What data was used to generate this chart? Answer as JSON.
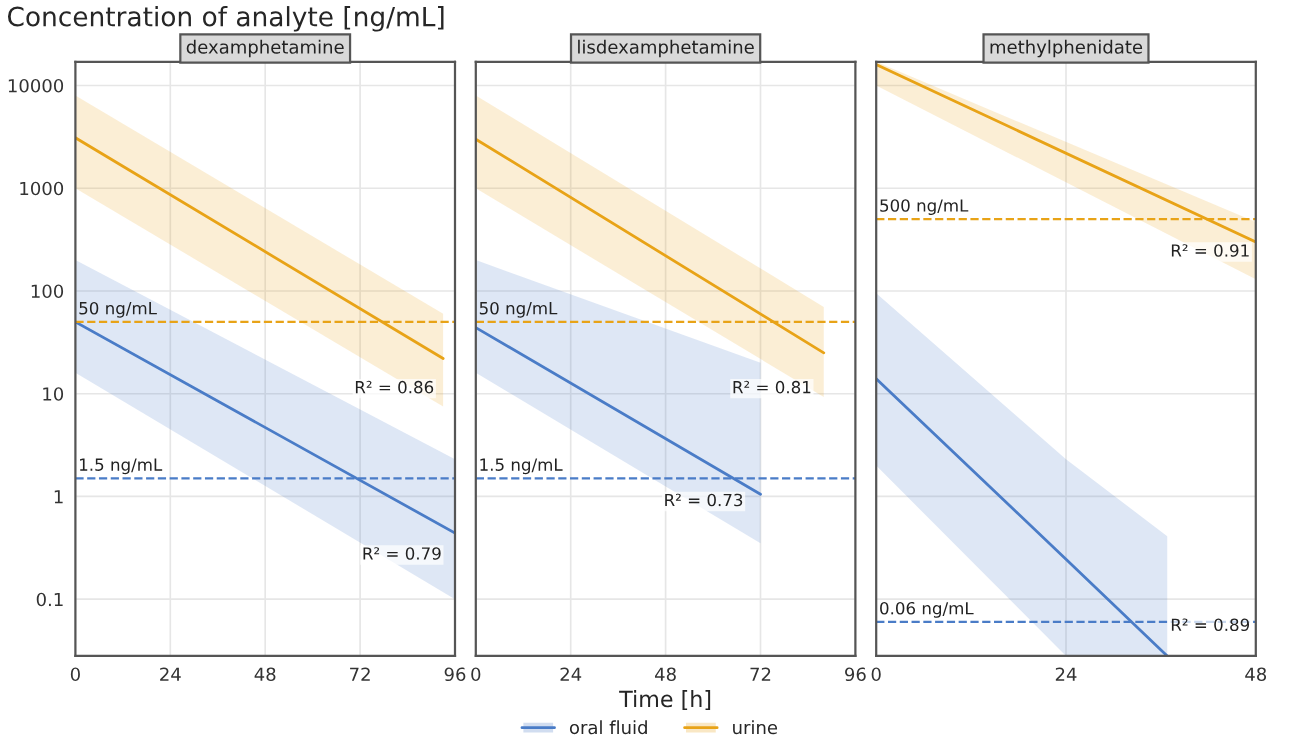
{
  "chart_data": [
    {
      "type": "line",
      "title": "dexamphetamine",
      "ylabel": "Concentration of analyte [ng/mL]",
      "log": true,
      "grid": true,
      "xlim": [
        0,
        96
      ],
      "xticks": [
        0,
        24,
        48,
        72,
        96
      ],
      "ylim": [
        0.028,
        17000
      ],
      "yticks": [
        0.1,
        1,
        10,
        100,
        1000,
        10000
      ],
      "series": [
        {
          "color": "#4a7cc7",
          "x": [
            0,
            96
          ],
          "values": [
            50,
            0.44
          ],
          "lower": [
            16,
            0.1
          ],
          "upper": [
            200,
            2.3
          ]
        },
        {
          "color": "#e8a317",
          "x": [
            0,
            93
          ],
          "values": [
            3100,
            22
          ],
          "lower": [
            1000,
            7.5
          ],
          "upper": [
            8000,
            60
          ]
        }
      ],
      "ref_lines": [
        {
          "axis": "y",
          "value": 50,
          "label": "50 ng/mL",
          "color": "#e8a317",
          "line_style": "dashed"
        },
        {
          "axis": "y",
          "value": 1.5,
          "label": "1.5 ng/mL",
          "color": "#4a7cc7",
          "line_style": "dashed"
        }
      ],
      "annotations": [
        "R² = 0.86",
        "R² = 0.79"
      ]
    },
    {
      "type": "line",
      "title": "lisdexamphetamine",
      "xlabel": "Time [h]",
      "log": true,
      "grid": true,
      "tick_labels": "x",
      "legend": "bottom",
      "xlim": [
        0,
        96
      ],
      "xticks": [
        0,
        24,
        48,
        72,
        96
      ],
      "ylim": [
        0.028,
        17000
      ],
      "series": [
        {
          "name": "oral fluid",
          "color": "#4a7cc7",
          "x": [
            0,
            72
          ],
          "values": [
            44,
            1.05
          ],
          "lower": [
            16,
            0.35
          ],
          "upper": [
            200,
            20
          ]
        },
        {
          "name": "urine",
          "color": "#e8a317",
          "x": [
            0,
            88
          ],
          "values": [
            3000,
            25
          ],
          "lower": [
            1000,
            9.3
          ],
          "upper": [
            8000,
            70
          ]
        }
      ],
      "ref_lines": [
        {
          "axis": "y",
          "value": 50,
          "label": "50 ng/mL",
          "color": "#e8a317",
          "line_style": "dashed"
        },
        {
          "axis": "y",
          "value": 1.5,
          "label": "1.5 ng/mL",
          "color": "#4a7cc7",
          "line_style": "dashed"
        }
      ],
      "annotations": [
        "R² = 0.81",
        "R² = 0.73"
      ]
    },
    {
      "type": "line",
      "title": "methylphenidate",
      "log": true,
      "grid": true,
      "tick_labels": "x",
      "xlim": [
        0,
        48
      ],
      "xticks": [
        0,
        24,
        48
      ],
      "ylim": [
        0.028,
        17000
      ],
      "series": [
        {
          "color": "#4a7cc7",
          "x": [
            0,
            24,
            36.8
          ],
          "values": [
            14,
            0.245,
            0.028
          ],
          "lower": [
            2,
            0.028,
            0.028
          ],
          "upper": [
            95,
            2.3,
            0.41
          ]
        },
        {
          "color": "#e8a317",
          "x": [
            0,
            48
          ],
          "values": [
            16000,
            300
          ],
          "lower": [
            10000,
            130
          ],
          "upper": [
            17000,
            470
          ]
        }
      ],
      "ref_lines": [
        {
          "axis": "y",
          "value": 500,
          "label": "500 ng/mL",
          "color": "#e8a317",
          "line_style": "dashed"
        },
        {
          "axis": "y",
          "value": 0.06,
          "label": "0.06 ng/mL",
          "color": "#4a7cc7",
          "line_style": "dashed"
        }
      ],
      "annotations": [
        "R² = 0.91",
        "R² = 0.89"
      ]
    }
  ]
}
